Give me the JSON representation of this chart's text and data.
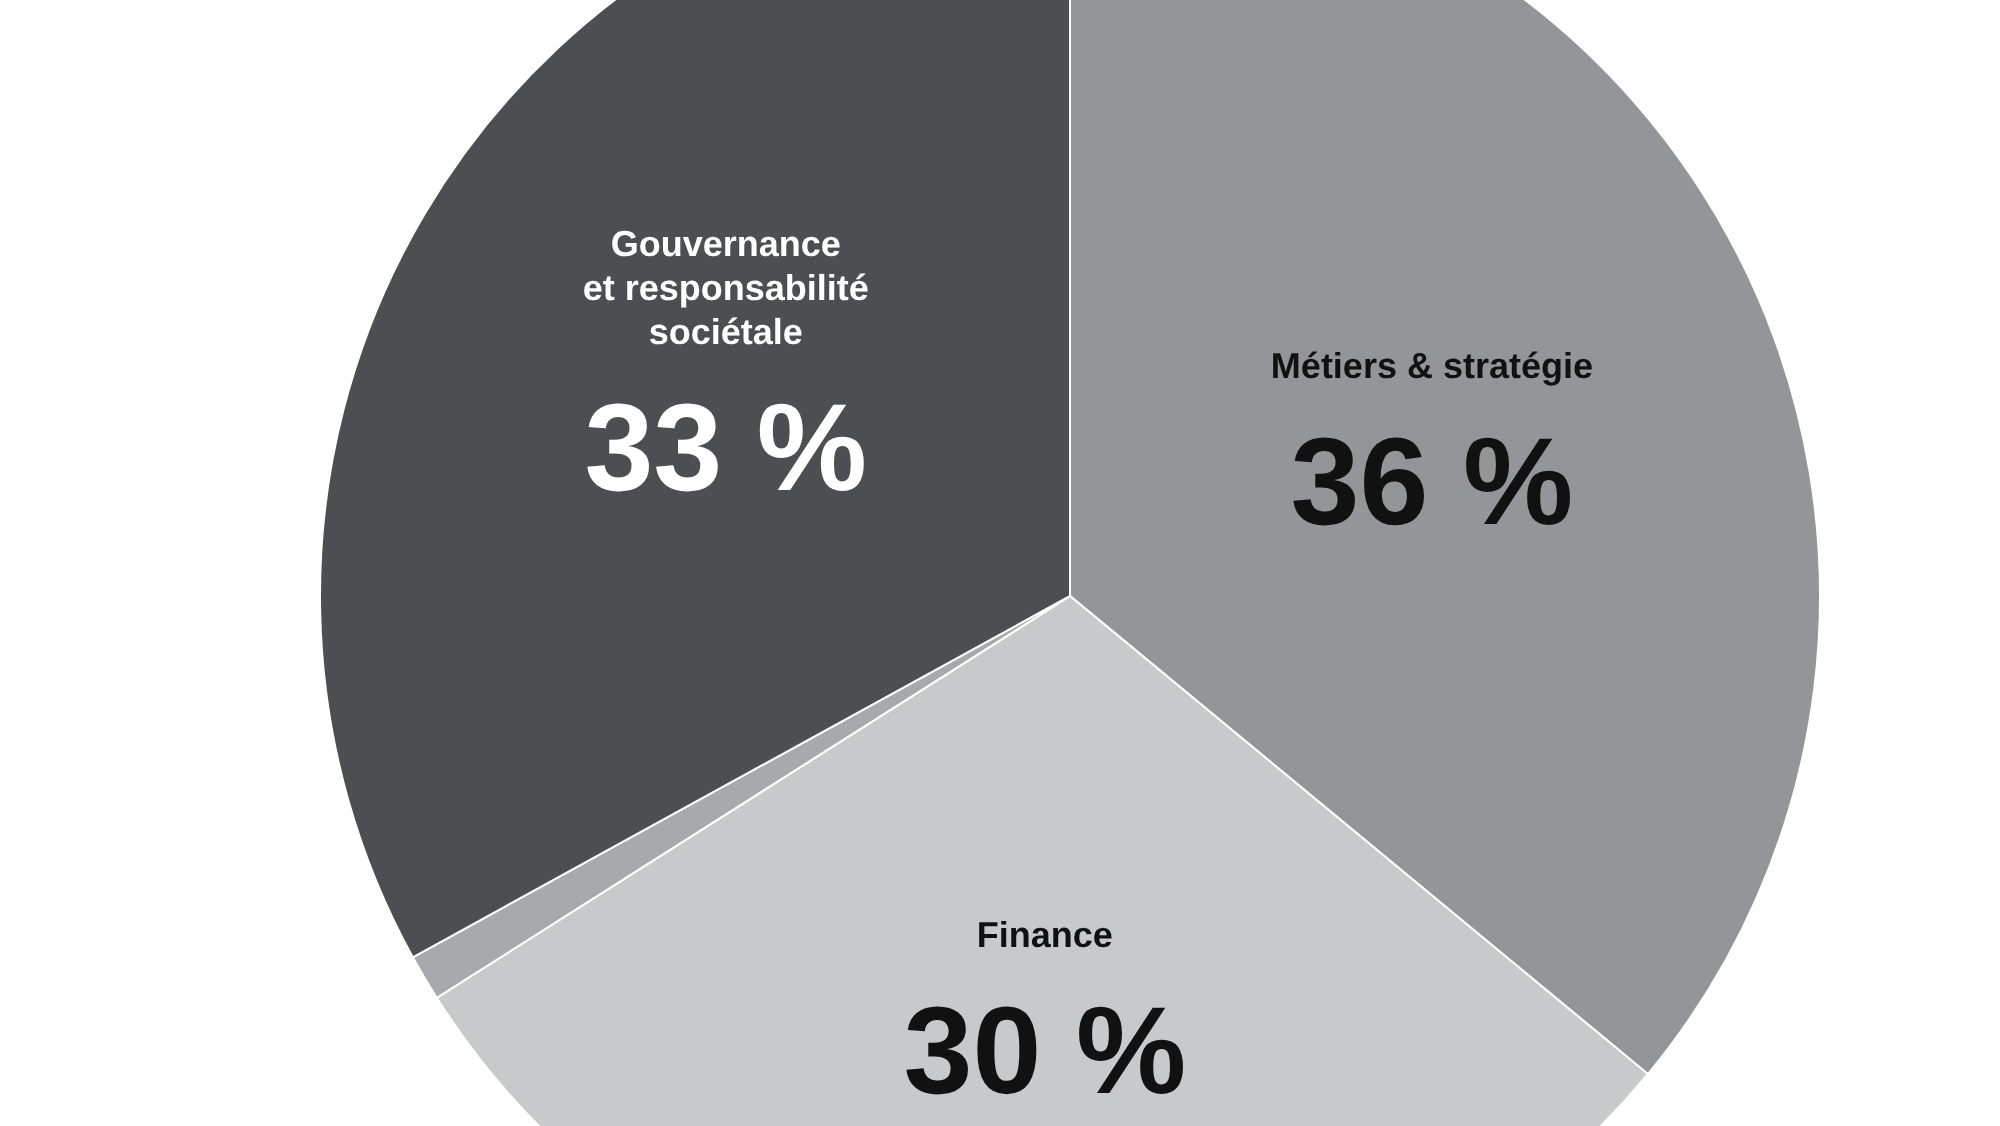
{
  "chart_data": {
    "type": "pie",
    "categories": [
      "Métiers & stratégie",
      "Finance",
      null,
      "Gouvernance\net responsabilité\nsociétale"
    ],
    "values": [
      36,
      30,
      1,
      33
    ],
    "colors": [
      "#939598",
      "#c8c9cb",
      "#a7a9ac",
      "#4d4e52"
    ],
    "value_labels": [
      "36 %",
      "30 %",
      null,
      "33 %"
    ]
  }
}
